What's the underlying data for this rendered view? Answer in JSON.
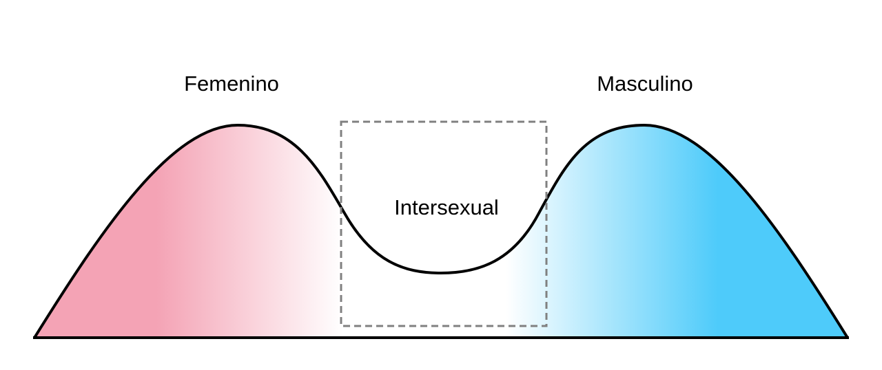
{
  "labels": {
    "female": "Femenino",
    "intersex": "Intersexual",
    "male": "Masculino"
  },
  "colors": {
    "female": "#f4a3b5",
    "male": "#4ecbfa",
    "middle": "#ffffff",
    "outline": "#000000",
    "intersex_box": "#808080"
  }
}
